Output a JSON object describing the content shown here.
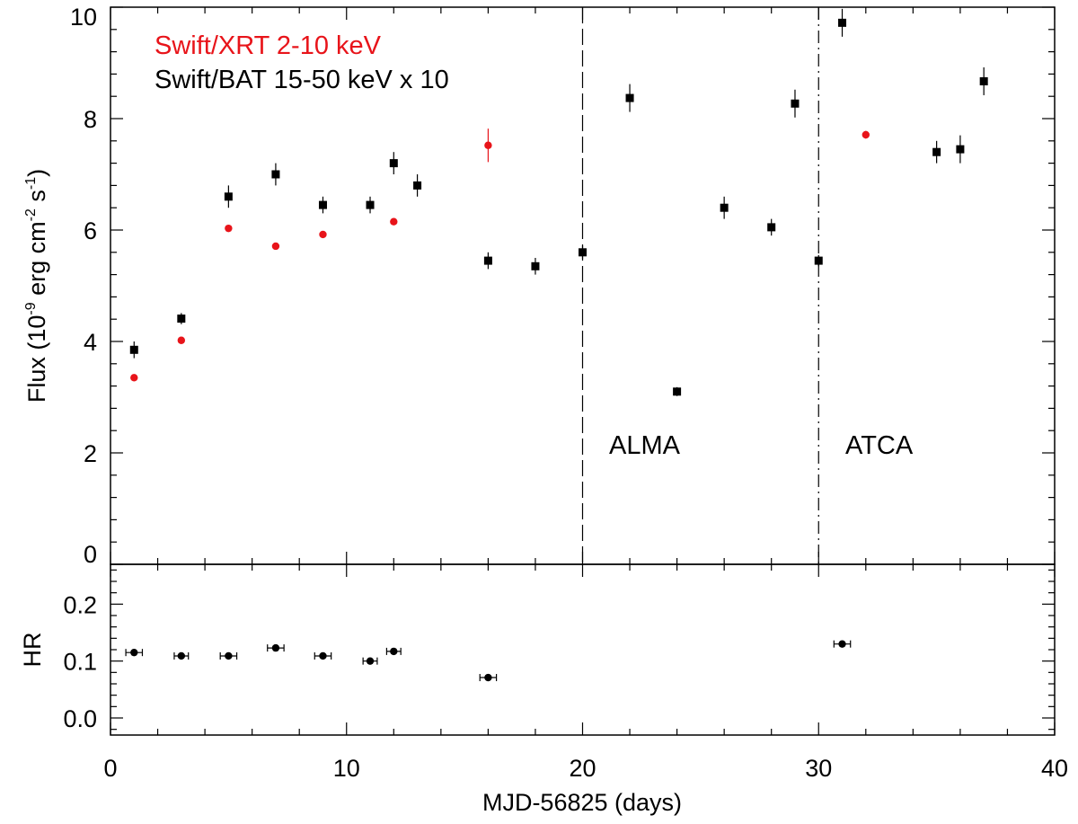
{
  "chart_data": {
    "type": "scatter",
    "xlabel": "MJD-56825 (days)",
    "xlim": [
      0,
      40
    ],
    "x_ticks": [
      "0",
      "10",
      "20",
      "30",
      "40"
    ],
    "panels": [
      {
        "name": "flux",
        "ylabel": "Flux (10-9 erg cm-2 s-1)",
        "ylabel_parts": {
          "pre": "Flux (10",
          "exp1": "-9",
          "mid1": " erg cm",
          "exp2": "-2",
          "mid2": " s",
          "exp3": "-1",
          "post": ")"
        },
        "ylim": [
          0,
          10
        ],
        "y_ticks": [
          "0",
          "2",
          "4",
          "6",
          "8",
          "10"
        ],
        "series": [
          {
            "name": "Swift/XRT 2-10 keV",
            "color": "#e8141a",
            "marker": "circle",
            "points": [
              {
                "x": 1,
                "y": 3.35,
                "err": 0.05
              },
              {
                "x": 3,
                "y": 4.02,
                "err": 0.05
              },
              {
                "x": 5,
                "y": 6.03,
                "err": 0.05
              },
              {
                "x": 7,
                "y": 5.71,
                "err": 0.05
              },
              {
                "x": 9,
                "y": 5.92,
                "err": 0.05
              },
              {
                "x": 11,
                "y": 6.45,
                "err": 0.08
              },
              {
                "x": 12,
                "y": 6.15,
                "err": 0.06
              },
              {
                "x": 16,
                "y": 7.52,
                "err": 0.3
              },
              {
                "x": 32,
                "y": 7.71,
                "err": 0.07
              }
            ]
          },
          {
            "name": "Swift/BAT 15-50 keV x 10",
            "color": "#000000",
            "marker": "square",
            "points": [
              {
                "x": 1,
                "y": 3.85,
                "err": 0.15
              },
              {
                "x": 3,
                "y": 4.41,
                "err": 0.1
              },
              {
                "x": 5,
                "y": 6.6,
                "err": 0.2
              },
              {
                "x": 7,
                "y": 7.0,
                "err": 0.2
              },
              {
                "x": 9,
                "y": 6.45,
                "err": 0.15
              },
              {
                "x": 11,
                "y": 6.45,
                "err": 0.15
              },
              {
                "x": 12,
                "y": 7.2,
                "err": 0.2
              },
              {
                "x": 13,
                "y": 6.8,
                "err": 0.2
              },
              {
                "x": 16,
                "y": 5.45,
                "err": 0.15
              },
              {
                "x": 18,
                "y": 5.35,
                "err": 0.15
              },
              {
                "x": 20,
                "y": 5.6,
                "err": 0.12
              },
              {
                "x": 22,
                "y": 8.37,
                "err": 0.25
              },
              {
                "x": 24,
                "y": 3.1,
                "err": 0.08
              },
              {
                "x": 26,
                "y": 6.4,
                "err": 0.2
              },
              {
                "x": 28,
                "y": 6.05,
                "err": 0.15
              },
              {
                "x": 29,
                "y": 8.27,
                "err": 0.25
              },
              {
                "x": 30,
                "y": 5.45,
                "err": 0.1
              },
              {
                "x": 31,
                "y": 9.72,
                "err": 0.25
              },
              {
                "x": 35,
                "y": 7.4,
                "err": 0.2
              },
              {
                "x": 36,
                "y": 7.45,
                "err": 0.25
              },
              {
                "x": 37,
                "y": 8.67,
                "err": 0.25
              }
            ]
          }
        ],
        "vlines": [
          {
            "x": 20,
            "style": "dashed",
            "label": "ALMA"
          },
          {
            "x": 30,
            "style": "dashdot",
            "label": "ATCA"
          }
        ],
        "legend": [
          "Swift/XRT 2-10 keV",
          "Swift/BAT 15-50 keV x 10"
        ],
        "legend_position": "top-left"
      },
      {
        "name": "hardness",
        "ylabel": "HR",
        "ylim": [
          -0.03,
          0.27
        ],
        "y_ticks": [
          "0.0",
          "0.1",
          "0.2"
        ],
        "y_tick_values": [
          0.0,
          0.1,
          0.2
        ],
        "series": [
          {
            "name": "HR",
            "color": "#000000",
            "marker": "circle",
            "points": [
              {
                "x": 1,
                "y": 0.115,
                "xerr": 0.35,
                "err": 0.006
              },
              {
                "x": 3,
                "y": 0.109,
                "xerr": 0.3,
                "err": 0.004
              },
              {
                "x": 5,
                "y": 0.109,
                "xerr": 0.35,
                "err": 0.005
              },
              {
                "x": 7,
                "y": 0.123,
                "xerr": 0.35,
                "err": 0.006
              },
              {
                "x": 9,
                "y": 0.109,
                "xerr": 0.35,
                "err": 0.004
              },
              {
                "x": 11,
                "y": 0.1,
                "xerr": 0.3,
                "err": 0.004
              },
              {
                "x": 12,
                "y": 0.117,
                "xerr": 0.3,
                "err": 0.006
              },
              {
                "x": 16,
                "y": 0.071,
                "xerr": 0.35,
                "err": 0.005
              },
              {
                "x": 31,
                "y": 0.13,
                "xerr": 0.35,
                "err": 0.005
              }
            ]
          }
        ]
      }
    ]
  }
}
